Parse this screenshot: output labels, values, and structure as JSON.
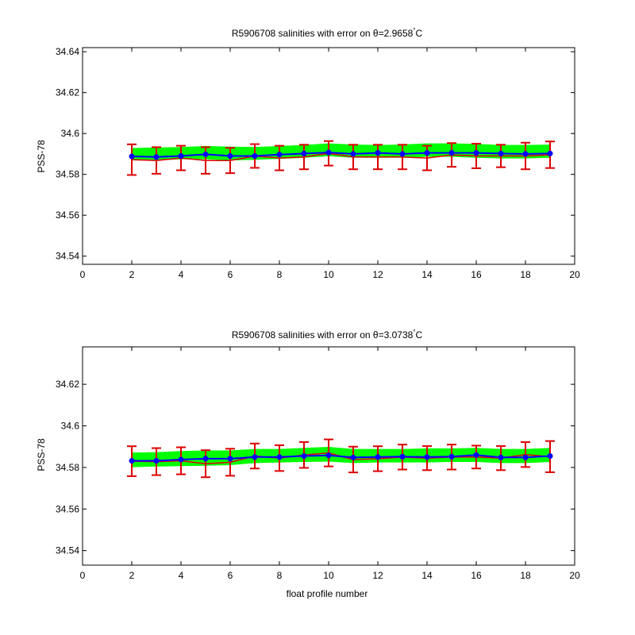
{
  "chart_data": [
    {
      "type": "line",
      "title_main": "R5906708 salinities with error on θ=2.9658",
      "title_sup": "°",
      "title_unit": "C",
      "xlabel": "",
      "ylabel": "PSS-78",
      "xlim": [
        0,
        20
      ],
      "ylim": [
        34.536,
        34.642
      ],
      "xticks": [
        0,
        2,
        4,
        6,
        8,
        10,
        12,
        14,
        16,
        18,
        20
      ],
      "yticks": [
        34.54,
        34.56,
        34.58,
        34.6,
        34.62,
        34.64
      ],
      "ytick_labels": [
        "34.54",
        "34.56",
        "34.58",
        "34.6",
        "34.62",
        "34.64"
      ],
      "grid": false,
      "x": [
        2,
        3,
        4,
        5,
        6,
        7,
        8,
        9,
        10,
        11,
        12,
        13,
        14,
        15,
        16,
        17,
        18,
        19
      ],
      "series": [
        {
          "kind": "band",
          "color": "#00ff00",
          "lower": [
            34.5872,
            34.5872,
            34.5878,
            34.5878,
            34.5872,
            34.5875,
            34.588,
            34.5885,
            34.5893,
            34.5885,
            34.5885,
            34.5885,
            34.589,
            34.589,
            34.5885,
            34.5882,
            34.5882,
            34.5885
          ],
          "upper": [
            34.5925,
            34.5928,
            34.593,
            34.5935,
            34.5932,
            34.593,
            34.5935,
            34.594,
            34.5948,
            34.5942,
            34.594,
            34.5942,
            34.5948,
            34.5948,
            34.5945,
            34.594,
            34.594,
            34.5942
          ]
        },
        {
          "kind": "errorbar",
          "color": "#dd0000",
          "values": [
            34.5872,
            34.5868,
            34.588,
            34.5868,
            34.5868,
            34.589,
            34.588,
            34.5885,
            34.5903,
            34.5885,
            34.5885,
            34.5885,
            34.588,
            34.5895,
            34.589,
            34.589,
            34.589,
            34.5896
          ],
          "err": [
            0.0075,
            0.0065,
            0.006,
            0.0065,
            0.0062,
            0.0058,
            0.006,
            0.006,
            0.006,
            0.006,
            0.006,
            0.006,
            0.006,
            0.0058,
            0.006,
            0.0055,
            0.0065,
            0.0065
          ]
        },
        {
          "kind": "line",
          "color": "#0000ff",
          "values": [
            34.5888,
            34.5885,
            34.589,
            34.5898,
            34.589,
            34.589,
            34.5897,
            34.5902,
            34.5907,
            34.59,
            34.5905,
            34.59,
            34.5905,
            34.5905,
            34.5905,
            34.5902,
            34.59,
            34.5902
          ]
        }
      ]
    },
    {
      "type": "line",
      "title_main": "R5906708 salinities with error on θ=3.0738",
      "title_sup": "°",
      "title_unit": "C",
      "xlabel": "float profile number",
      "ylabel": "PSS-78",
      "xlim": [
        0,
        20
      ],
      "ylim": [
        34.533,
        34.638
      ],
      "xticks": [
        0,
        2,
        4,
        6,
        8,
        10,
        12,
        14,
        16,
        18,
        20
      ],
      "yticks": [
        34.54,
        34.56,
        34.58,
        34.6,
        34.62
      ],
      "ytick_labels": [
        "34.54",
        "34.56",
        "34.58",
        "34.6",
        "34.62"
      ],
      "grid": false,
      "x": [
        2,
        3,
        4,
        5,
        6,
        7,
        8,
        9,
        10,
        11,
        12,
        13,
        14,
        15,
        16,
        17,
        18,
        19
      ],
      "series": [
        {
          "kind": "band",
          "color": "#00ff00",
          "lower": [
            34.5805,
            34.5808,
            34.581,
            34.5812,
            34.5815,
            34.5825,
            34.5828,
            34.583,
            34.5832,
            34.5825,
            34.5828,
            34.5828,
            34.5828,
            34.583,
            34.583,
            34.5825,
            34.5825,
            34.583
          ],
          "upper": [
            34.5868,
            34.587,
            34.5875,
            34.5878,
            34.5878,
            34.5885,
            34.5885,
            34.589,
            34.5895,
            34.5885,
            34.5885,
            34.5885,
            34.5888,
            34.5888,
            34.589,
            34.5885,
            34.5885,
            34.589
          ]
        },
        {
          "kind": "errorbar",
          "color": "#dd0000",
          "values": [
            34.583,
            34.5828,
            34.5832,
            34.5818,
            34.5825,
            34.5855,
            34.5845,
            34.586,
            34.587,
            34.5838,
            34.5842,
            34.585,
            34.5845,
            34.585,
            34.585,
            34.5845,
            34.5862,
            34.5852
          ],
          "err": [
            0.0072,
            0.0065,
            0.0065,
            0.0065,
            0.0065,
            0.006,
            0.0062,
            0.0062,
            0.0065,
            0.0062,
            0.006,
            0.006,
            0.0058,
            0.006,
            0.0055,
            0.0058,
            0.006,
            0.0075
          ]
        },
        {
          "kind": "line",
          "color": "#0000ff",
          "values": [
            34.5832,
            34.5832,
            34.5838,
            34.5842,
            34.5842,
            34.585,
            34.585,
            34.5855,
            34.5858,
            34.5848,
            34.585,
            34.5852,
            34.585,
            34.5852,
            34.586,
            34.5848,
            34.5848,
            34.5855
          ]
        }
      ]
    }
  ]
}
